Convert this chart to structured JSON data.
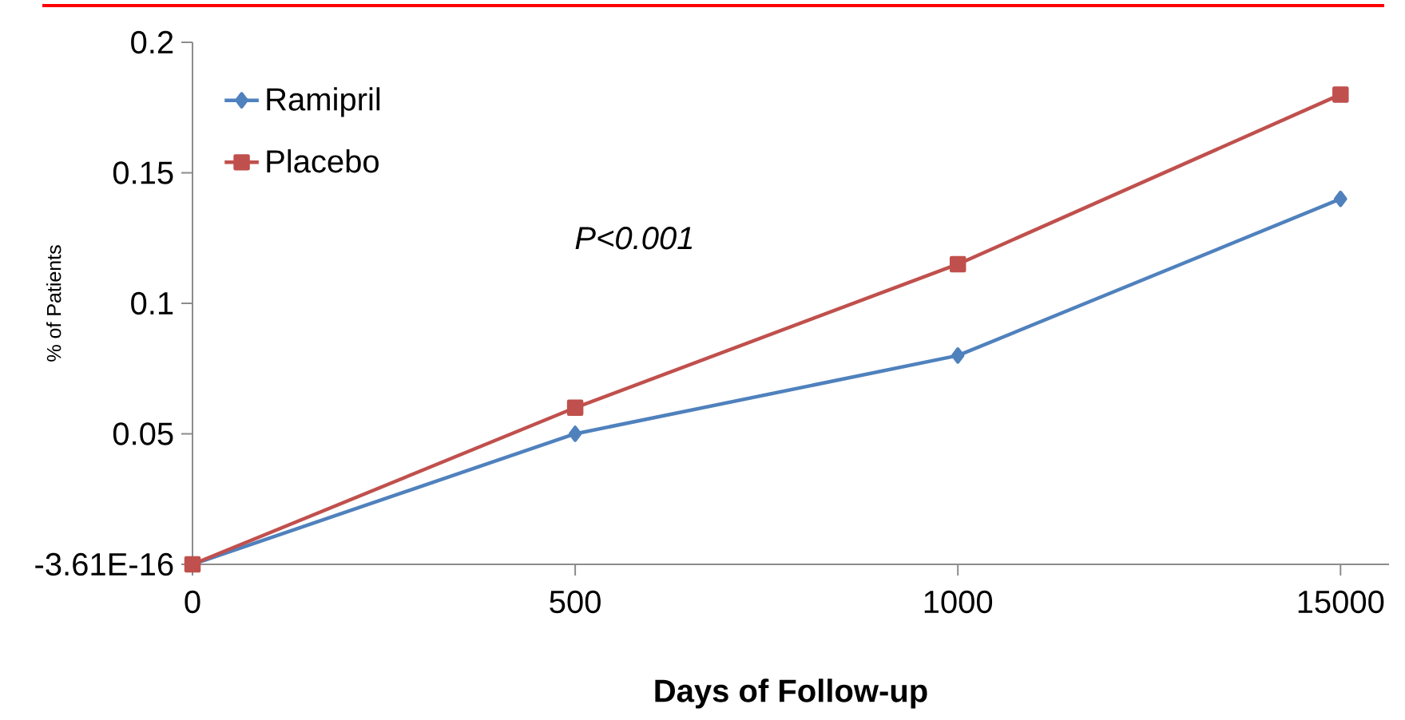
{
  "chart_data": {
    "type": "line",
    "xlabel": "Days of Follow-up",
    "ylabel": "% of Patients",
    "categories": [
      "0",
      "500",
      "1000",
      "15000"
    ],
    "series": [
      {
        "name": "Ramipril",
        "color": "#4f81bd",
        "marker": "diamond",
        "values": [
          0,
          0.05,
          0.08,
          0.14
        ]
      },
      {
        "name": "Placebo",
        "color": "#c0504d",
        "marker": "square",
        "values": [
          0,
          0.06,
          0.115,
          0.18
        ]
      }
    ],
    "ylim": [
      0,
      0.2
    ],
    "yticks": [
      {
        "value": 0,
        "label": "-3.61E-16"
      },
      0.05,
      0.1,
      0.15,
      0.2
    ],
    "legend": "top left",
    "grid": false,
    "line_style": "solid",
    "annotations": [
      "P<0.001"
    ]
  }
}
